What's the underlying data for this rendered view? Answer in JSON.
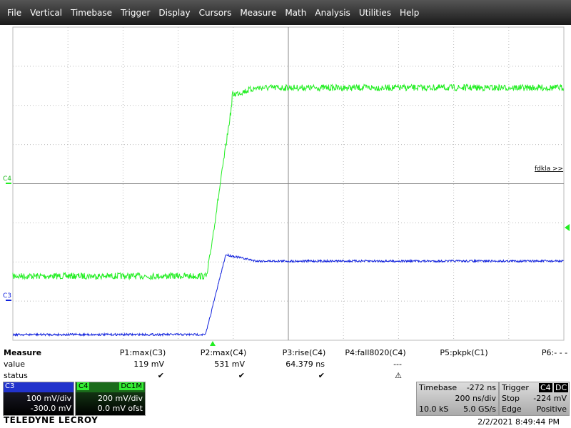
{
  "menu": [
    "File",
    "Vertical",
    "Timebase",
    "Trigger",
    "Display",
    "Cursors",
    "Measure",
    "Math",
    "Analysis",
    "Utilities",
    "Help"
  ],
  "plot": {
    "c4_label": "C4",
    "c3_label": "C3",
    "annotation": "fdkla >>"
  },
  "measure": {
    "title": "Measure",
    "row_labels": [
      "value",
      "status"
    ],
    "params": [
      {
        "name": "P1:max(C3)",
        "value": "119 mV",
        "status": "✔"
      },
      {
        "name": "P2:max(C4)",
        "value": "531 mV",
        "status": "✔"
      },
      {
        "name": "P3:rise(C4)",
        "value": "64.379 ns",
        "status": "✔"
      },
      {
        "name": "P4:fall8020(C4)",
        "value": "---",
        "status": "⚠"
      },
      {
        "name": "P5:pkpk(C1)",
        "value": "",
        "status": ""
      },
      {
        "name": "P6:- - -",
        "value": "",
        "status": ""
      }
    ]
  },
  "channels": [
    {
      "name": "C3",
      "vdiv": "100 mV/div",
      "offset": "-300.0 mV"
    },
    {
      "name": "C4",
      "coupling": "DC1M",
      "vdiv": "200 mV/div",
      "offset": "0.0 mV ofst"
    }
  ],
  "timebase": {
    "title": "Timebase",
    "delay": "-272 ns",
    "tdiv": "200 ns/div",
    "samples": "10.0 kS",
    "rate": "5.0 GS/s"
  },
  "trigger": {
    "title": "Trigger",
    "source": "C4",
    "coupling": "DC",
    "mode": "Stop",
    "level": "-224 mV",
    "type": "Edge",
    "slope": "Positive"
  },
  "footer": {
    "brand": "TELEDYNE LECROY",
    "datetime": "2/2/2021 8:49:44 PM"
  }
}
